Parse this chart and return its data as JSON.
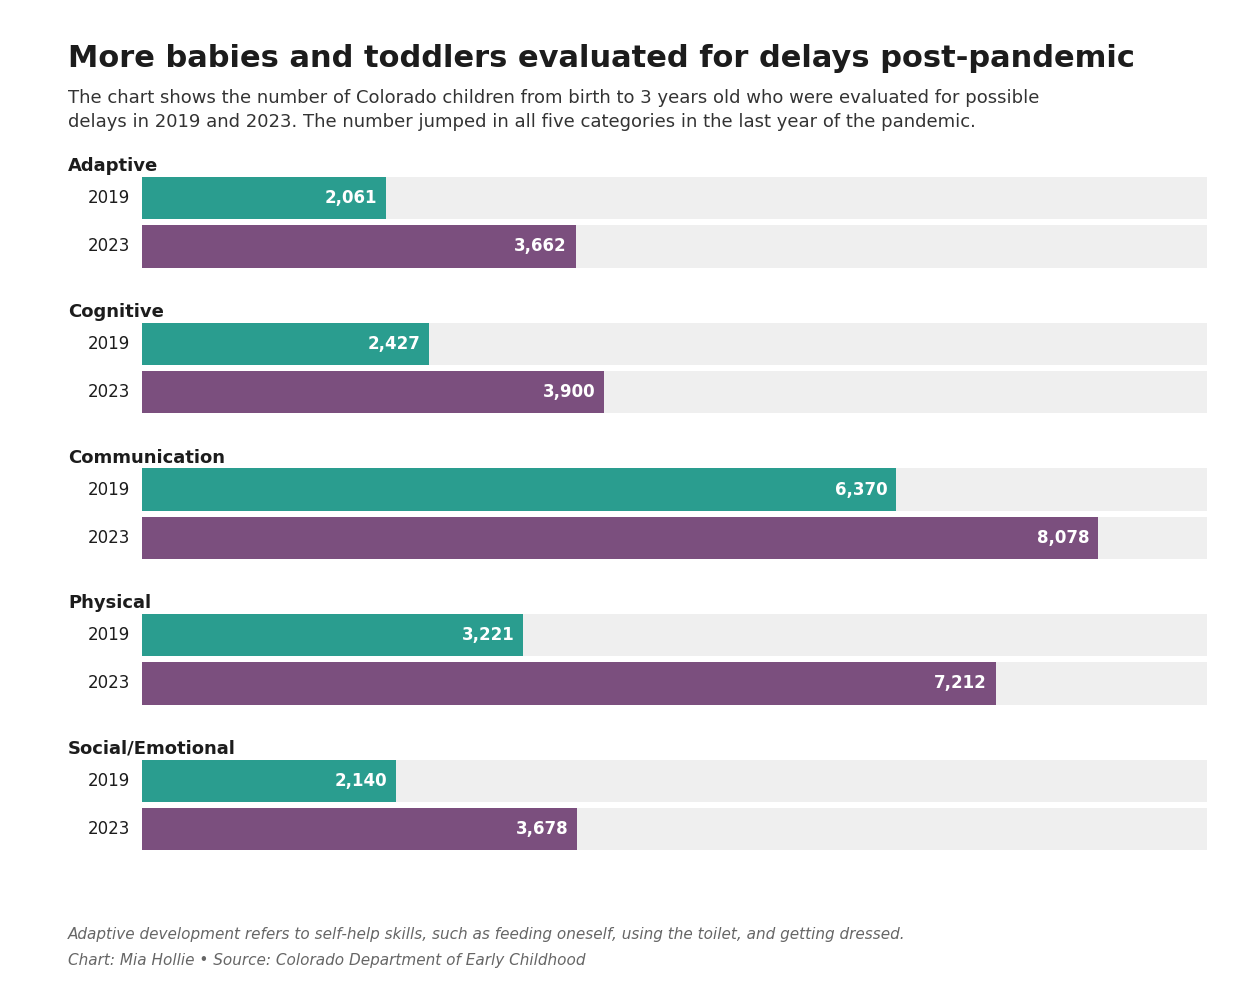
{
  "title": "More babies and toddlers evaluated for delays post-pandemic",
  "subtitle": "The chart shows the number of Colorado children from birth to 3 years old who were evaluated for possible\ndelays in 2019 and 2023. The number jumped in all five categories in the last year of the pandemic.",
  "footnote1": "Adaptive development refers to self-help skills, such as feeding oneself, using the toilet, and getting dressed.",
  "footnote2": "Chart: Mia Hollie • Source: Colorado Department of Early Childhood",
  "categories": [
    "Adaptive",
    "Cognitive",
    "Communication",
    "Physical",
    "Social/Emotional"
  ],
  "years": [
    "2019",
    "2023"
  ],
  "values": {
    "Adaptive": [
      2061,
      3662
    ],
    "Cognitive": [
      2427,
      3900
    ],
    "Communication": [
      6370,
      8078
    ],
    "Physical": [
      3221,
      7212
    ],
    "Social/Emotional": [
      2140,
      3678
    ]
  },
  "color_2019": "#2a9d8f",
  "color_2023": "#7b4f7e",
  "bar_bg_color": "#efefef",
  "background_color": "#ffffff",
  "max_value": 9000,
  "title_fontsize": 22,
  "subtitle_fontsize": 13,
  "category_fontsize": 13,
  "year_fontsize": 12,
  "value_fontsize": 12,
  "footnote_fontsize": 11
}
